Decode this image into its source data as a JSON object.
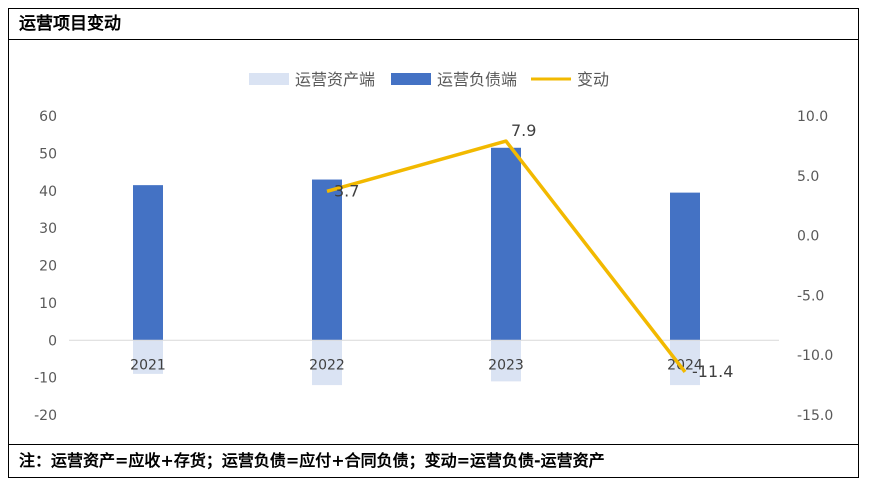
{
  "header": {
    "title": "运营项目变动"
  },
  "footer": {
    "note": "注：运营资产=应收+存货；运营负债=应付+合同负债；变动=运营负债-运营资产"
  },
  "colors": {
    "asset": "#dae3f3",
    "liability": "#4472c4",
    "change": "#f2b900"
  },
  "chart_data": {
    "type": "bar",
    "categories": [
      "2021",
      "2022",
      "2023",
      "2024"
    ],
    "series": [
      {
        "name": "运营资产端",
        "kind": "bar",
        "axis": "left",
        "values": [
          -9,
          -12,
          -11,
          -12
        ]
      },
      {
        "name": "运营负债端",
        "kind": "bar",
        "axis": "left",
        "values": [
          41.5,
          43,
          51.5,
          39.5
        ]
      },
      {
        "name": "变动",
        "kind": "line",
        "axis": "right",
        "values": [
          null,
          3.7,
          7.9,
          -11.4
        ]
      }
    ],
    "data_labels": [
      "3.7",
      "7.9",
      "-11.4"
    ],
    "y_left": {
      "lim": [
        -20,
        60
      ],
      "ticks": [
        "60",
        "50",
        "40",
        "30",
        "20",
        "10",
        "0",
        "-10",
        "-20"
      ]
    },
    "y_right": {
      "lim": [
        -15,
        10
      ],
      "ticks": [
        "10.0",
        "5.0",
        "0.0",
        "-5.0",
        "-10.0",
        "-15.0"
      ]
    },
    "legend_position": "top",
    "grid": false
  }
}
